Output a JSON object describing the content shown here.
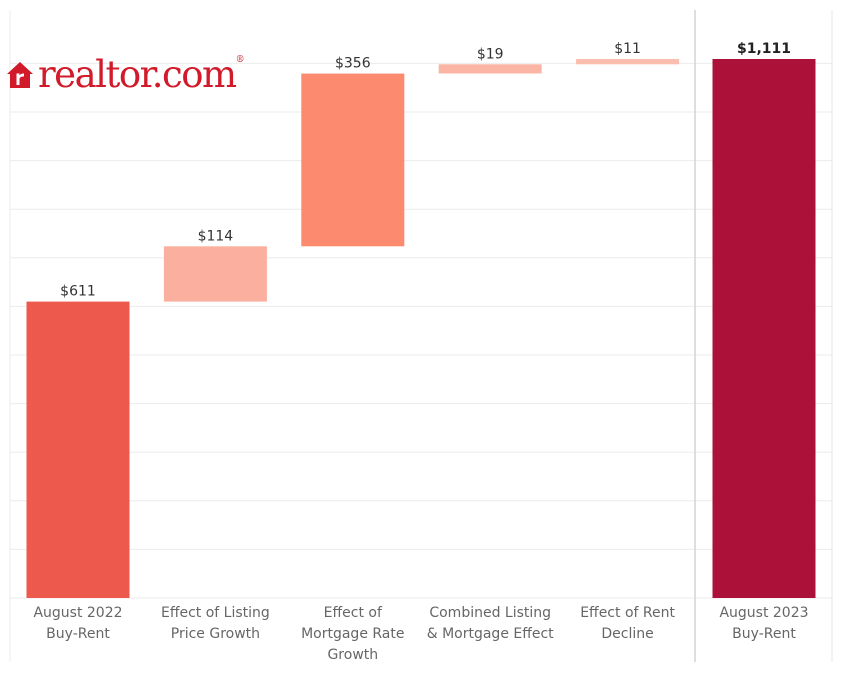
{
  "brand": {
    "logo_text": "realtor.com",
    "trademark": "®",
    "color": "#d11a2a"
  },
  "chart_data": {
    "type": "bar",
    "subtype": "waterfall",
    "categories": [
      [
        "August 2022",
        "Buy-Rent"
      ],
      [
        "Effect of Listing",
        "Price Growth"
      ],
      [
        "Effect of",
        "Mortgage Rate",
        "Growth"
      ],
      [
        "Combined Listing",
        "& Mortgage Effect"
      ],
      [
        "Effect of Rent",
        "Decline"
      ],
      [
        "August 2023",
        "Buy-Rent"
      ]
    ],
    "values": [
      611,
      114,
      356,
      19,
      11,
      1111
    ],
    "value_labels": [
      "$611",
      "$114",
      "$356",
      "$19",
      "$11",
      "$1,111"
    ],
    "bar_kind": [
      "total",
      "delta",
      "delta",
      "delta",
      "delta",
      "total"
    ],
    "colors": [
      "#ed5a4d",
      "#fbaf9e",
      "#fb8a6e",
      "#fbb5a5",
      "#fbbdae",
      "#ac1239"
    ],
    "ylim": [
      0,
      1120
    ],
    "grid": true,
    "title": "",
    "xlabel": "",
    "ylabel": ""
  }
}
